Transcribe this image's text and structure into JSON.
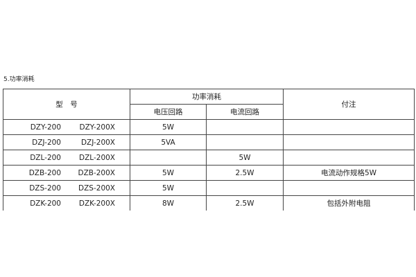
{
  "section_title": "5.功率消耗",
  "header": {
    "model": "型　号",
    "power": "功率消耗",
    "voltage": "电压回路",
    "current": "电流回路",
    "note": "付注"
  },
  "rows": [
    {
      "m1": "DZY-200",
      "m2": "DZY-200X",
      "voltage": "5W",
      "current": "",
      "note": ""
    },
    {
      "m1": "DZJ-200",
      "m2": "DZJ-200X",
      "voltage": "5VA",
      "current": "",
      "note": ""
    },
    {
      "m1": "DZL-200",
      "m2": "DZL-200X",
      "voltage": "",
      "current": "5W",
      "note": ""
    },
    {
      "m1": "DZB-200",
      "m2": "DZB-200X",
      "voltage": "5W",
      "current": "2.5W",
      "note": "电流动作规格5W"
    },
    {
      "m1": "DZS-200",
      "m2": "DZS-200X",
      "voltage": "5W",
      "current": "",
      "note": ""
    },
    {
      "m1": "DZK-200",
      "m2": "DZK-200X",
      "voltage": "8W",
      "current": "2.5W",
      "note": "包括外附电阻"
    }
  ]
}
